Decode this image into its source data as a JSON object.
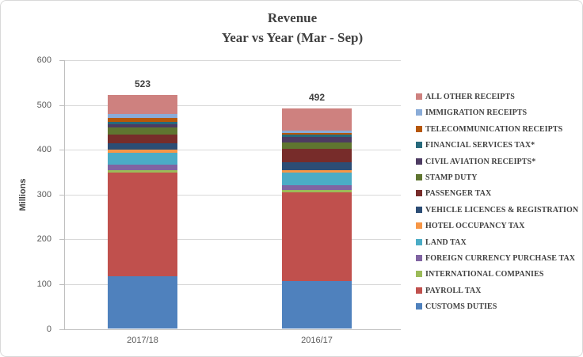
{
  "window": {
    "background": "#FFFFFF",
    "border_color": "#D9D9D9"
  },
  "chart_data": {
    "type": "bar",
    "stacked": true,
    "title": "Revenue",
    "subtitle": "Year vs Year (Mar - Sep)",
    "ylabel": "Millions",
    "xlabel": "",
    "ylim": [
      0,
      600
    ],
    "yticks": [
      0,
      100,
      200,
      300,
      400,
      500,
      600
    ],
    "grid": true,
    "legend_position": "right",
    "categories": [
      "2017/18",
      "2016/17"
    ],
    "totals": [
      523,
      492
    ],
    "series": [
      {
        "name": "CUSTOMS DUTIES",
        "color": "#4F81BD",
        "values": [
          117,
          107
        ]
      },
      {
        "name": "PAYROLL TAX",
        "color": "#C0504D",
        "values": [
          232,
          198
        ]
      },
      {
        "name": "INTERNATIONAL COMPANIES",
        "color": "#9BBB59",
        "values": [
          5,
          5
        ]
      },
      {
        "name": "FOREIGN CURRENCY PURCHASE TAX",
        "color": "#8064A2",
        "values": [
          12,
          11
        ]
      },
      {
        "name": "LAND TAX",
        "color": "#4BACC6",
        "values": [
          27,
          28
        ]
      },
      {
        "name": "HOTEL OCCUPANCY TAX",
        "color": "#F79646",
        "values": [
          8,
          5
        ]
      },
      {
        "name": "VEHICLE LICENCES & REGISTRATION",
        "color": "#2C4D75",
        "values": [
          14,
          18
        ]
      },
      {
        "name": "PASSENGER TAX",
        "color": "#772C2A",
        "values": [
          19,
          30
        ]
      },
      {
        "name": "STAMP DUTY",
        "color": "#5F7530",
        "values": [
          15,
          14
        ]
      },
      {
        "name": "CIVIL AVIATION RECEIPTS*",
        "color": "#4D3B62",
        "values": [
          7,
          13
        ]
      },
      {
        "name": "FINANCIAL SERVICES TAX*",
        "color": "#276A7C",
        "values": [
          7,
          4
        ]
      },
      {
        "name": "TELECOMMUNICATION RECEIPTS",
        "color": "#B65708",
        "values": [
          8,
          5
        ]
      },
      {
        "name": "IMMIGRATION RECEIPTS",
        "color": "#8AACD8",
        "values": [
          9,
          5
        ]
      },
      {
        "name": "ALL OTHER RECEIPTS",
        "color": "#CE817F",
        "values": [
          43,
          49
        ]
      }
    ],
    "style": {
      "grid_color": "#D9D9D9",
      "axis_color": "#BFBFBF",
      "title_color": "#404040",
      "tick_label_color": "#595959",
      "data_label_color": "#404040"
    }
  }
}
